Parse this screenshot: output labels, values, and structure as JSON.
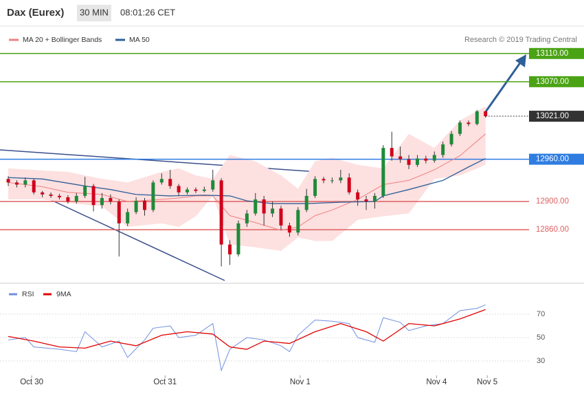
{
  "header": {
    "title": "Dax (Eurex)",
    "interval": "30 MIN",
    "time": "08:01:26 CET"
  },
  "credit": "Research © 2019 Trading Central",
  "chart_data": [
    {
      "type": "candlestick",
      "up_color": "#1f8a3a",
      "down_color": "#d0021b",
      "xlim": [
        -0.97,
        60.7
      ],
      "ylim": [
        12786,
        13142
      ],
      "open": [
        12932,
        12927,
        12924,
        12930,
        12913,
        12910,
        12908,
        12906,
        12900,
        12908,
        12922,
        12895,
        12905,
        12900,
        12869,
        12885,
        12901,
        12888,
        12927,
        12932,
        12922,
        12913,
        12917,
        12915,
        12917,
        12930,
        12839,
        12825,
        12869,
        12883,
        12903,
        12883,
        12890,
        12866,
        12856,
        12888,
        12908,
        12932,
        12930,
        12930,
        12934,
        12913,
        12903,
        12900,
        12908,
        12976,
        12964,
        12960,
        12952,
        12961,
        12958,
        12966,
        12981,
        12996,
        13012,
        13010,
        13028
      ],
      "high": [
        12936,
        12930,
        12934,
        12932,
        12915,
        12913,
        12911,
        12909,
        12912,
        12935,
        12925,
        12912,
        12910,
        12903,
        12890,
        12906,
        12905,
        12930,
        12940,
        12945,
        12925,
        12920,
        12920,
        12921,
        12945,
        12933,
        12845,
        12873,
        12888,
        12912,
        12908,
        12900,
        12894,
        12870,
        12892,
        12918,
        12936,
        12935,
        12934,
        12945,
        12940,
        12917,
        12908,
        12912,
        12980,
        12999,
        12978,
        12966,
        12966,
        12965,
        12971,
        12985,
        13000,
        13015,
        13015,
        13030,
        13029
      ],
      "low": [
        12922,
        12920,
        12920,
        12910,
        12906,
        12905,
        12903,
        12897,
        12897,
        12905,
        12886,
        12890,
        12896,
        12822,
        12865,
        12882,
        12880,
        12885,
        12924,
        12918,
        12908,
        12910,
        12912,
        12913,
        12914,
        12808,
        12810,
        12822,
        12864,
        12880,
        12866,
        12878,
        12860,
        12850,
        12852,
        12885,
        12905,
        12926,
        12926,
        12926,
        12910,
        12894,
        12888,
        12890,
        12905,
        12958,
        12955,
        12946,
        12949,
        12954,
        12955,
        12962,
        12978,
        12993,
        13007,
        13008,
        13019
      ],
      "close": [
        12927,
        12924,
        12930,
        12913,
        12910,
        12908,
        12906,
        12900,
        12908,
        12922,
        12895,
        12905,
        12900,
        12869,
        12885,
        12901,
        12888,
        12927,
        12932,
        12922,
        12913,
        12917,
        12915,
        12917,
        12930,
        12839,
        12825,
        12869,
        12883,
        12903,
        12883,
        12890,
        12866,
        12856,
        12888,
        12908,
        12932,
        12930,
        12930,
        12934,
        12913,
        12903,
        12900,
        12908,
        12976,
        12964,
        12960,
        12952,
        12961,
        12958,
        12966,
        12981,
        12996,
        13012,
        13010,
        13028,
        13021
      ],
      "series": [
        {
          "name": "MA 20 + Bollinger Bands",
          "color": "#f08080",
          "band_color": "#fde0e0",
          "x": [
            0,
            4,
            7,
            11,
            14,
            18,
            20,
            22,
            24,
            26,
            29,
            32,
            34,
            36,
            38,
            41,
            44,
            47,
            50,
            53,
            56
          ],
          "values": [
            12927,
            12921,
            12913,
            12910,
            12900,
            12903,
            12905,
            12908,
            12908,
            12880,
            12870,
            12859,
            12864,
            12880,
            12888,
            12903,
            12924,
            12930,
            12945,
            12965,
            12996
          ],
          "upper": [
            12947,
            12944,
            12942,
            12932,
            12927,
            12942,
            12947,
            12937,
            12932,
            12966,
            12957,
            12937,
            12918,
            12957,
            12962,
            12952,
            12947,
            12996,
            12976,
            13015,
            13035
          ],
          "lower": [
            12903,
            12903,
            12898,
            12893,
            12864,
            12869,
            12864,
            12879,
            12908,
            12839,
            12835,
            12830,
            12849,
            12844,
            12844,
            12874,
            12879,
            12883,
            12932,
            12937,
            12952
          ]
        },
        {
          "name": "MA 50",
          "color": "#2f5f98",
          "x": [
            0,
            4,
            9,
            12,
            15,
            19,
            23,
            26,
            28,
            31,
            35,
            39,
            43,
            44,
            47,
            51,
            54,
            56
          ],
          "values": [
            12934,
            12932,
            12922,
            12917,
            12910,
            12908,
            12909,
            12908,
            12901,
            12897,
            12897,
            12899,
            12900,
            12908,
            12917,
            12930,
            12949,
            12961
          ]
        }
      ],
      "levels": [
        {
          "value": 13110,
          "label": "13110.00",
          "color": "#4aa314",
          "boxed": true
        },
        {
          "value": 13070,
          "label": "13070.00",
          "color": "#4aa314",
          "boxed": true
        },
        {
          "value": 13021,
          "label": "13021.00",
          "color": "#333333",
          "boxed": true,
          "dotted": true
        },
        {
          "value": 12960,
          "label": "12960.00",
          "color": "#2f7de1",
          "boxed": true
        },
        {
          "value": 12900,
          "label": "12900.00",
          "color": "#e06060",
          "boxed": false
        },
        {
          "value": 12860,
          "label": "12860.00",
          "color": "#e06060",
          "boxed": false
        }
      ]
    },
    {
      "type": "line",
      "xlim": [
        -0.97,
        60.7
      ],
      "ylim": [
        2.4,
        94.7
      ],
      "yticks": [
        30,
        50,
        70
      ],
      "xticks": [
        {
          "value": 2.75,
          "label": "Oct 30"
        },
        {
          "value": 18.4,
          "label": "Oct 31"
        },
        {
          "value": 34.25,
          "label": "Nov 1"
        },
        {
          "value": 50.25,
          "label": "Nov 4"
        },
        {
          "value": 56.2,
          "label": "Nov 5"
        }
      ],
      "series": [
        {
          "name": "RSI",
          "color": "#6f8fe0",
          "x": [
            0,
            2,
            3,
            6,
            8,
            9,
            11,
            13,
            14,
            16,
            17,
            19,
            20,
            22,
            24,
            25,
            26,
            28,
            30,
            32,
            33,
            34,
            36,
            38,
            40,
            41,
            43,
            44,
            46,
            47,
            49,
            51,
            53,
            55,
            56
          ],
          "values": [
            48,
            50,
            42,
            40,
            38,
            55,
            42,
            47,
            33,
            48,
            58,
            60,
            50,
            52,
            62,
            22,
            40,
            50,
            48,
            43,
            38,
            52,
            65,
            64,
            62,
            50,
            46,
            67,
            63,
            56,
            60,
            62,
            73,
            75,
            78
          ]
        },
        {
          "name": "9MA",
          "color": "#e00000",
          "x": [
            0,
            3,
            6,
            9,
            12,
            15,
            18,
            21,
            24,
            26,
            28,
            30,
            33,
            36,
            39,
            42,
            44,
            47,
            50,
            53,
            56
          ],
          "values": [
            51,
            47,
            42,
            41,
            47,
            43,
            52,
            55,
            53,
            42,
            40,
            47,
            45,
            55,
            62,
            55,
            47,
            62,
            60,
            66,
            74
          ]
        }
      ]
    }
  ]
}
